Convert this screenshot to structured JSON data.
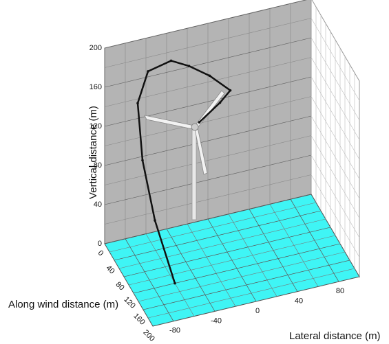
{
  "chart_data": {
    "type": "line3d",
    "zlabel": "Vertical distance (m)",
    "xlabel": "Along wind distance (m)",
    "ylabel": "Lateral distance (m)",
    "xlim": [
      0,
      200
    ],
    "xticks": [
      0,
      40,
      80,
      120,
      160,
      200
    ],
    "ylim": [
      -100,
      100
    ],
    "yticks": [
      -80,
      -40,
      0,
      40,
      80
    ],
    "zlim": [
      0,
      200
    ],
    "zticks": [
      0,
      40,
      80,
      120,
      160,
      200
    ],
    "grid": true,
    "series": [
      {
        "color": "#111111",
        "x": [
          120,
          80,
          50,
          30,
          30,
          40,
          50,
          50,
          50,
          50,
          50
        ],
        "y": [
          -60,
          -70,
          -75,
          -75,
          -65,
          -45,
          -30,
          -10,
          10,
          0,
          -20
        ],
        "z": [
          0,
          50,
          100,
          150,
          180,
          190,
          185,
          170,
          150,
          140,
          125
        ]
      }
    ]
  }
}
